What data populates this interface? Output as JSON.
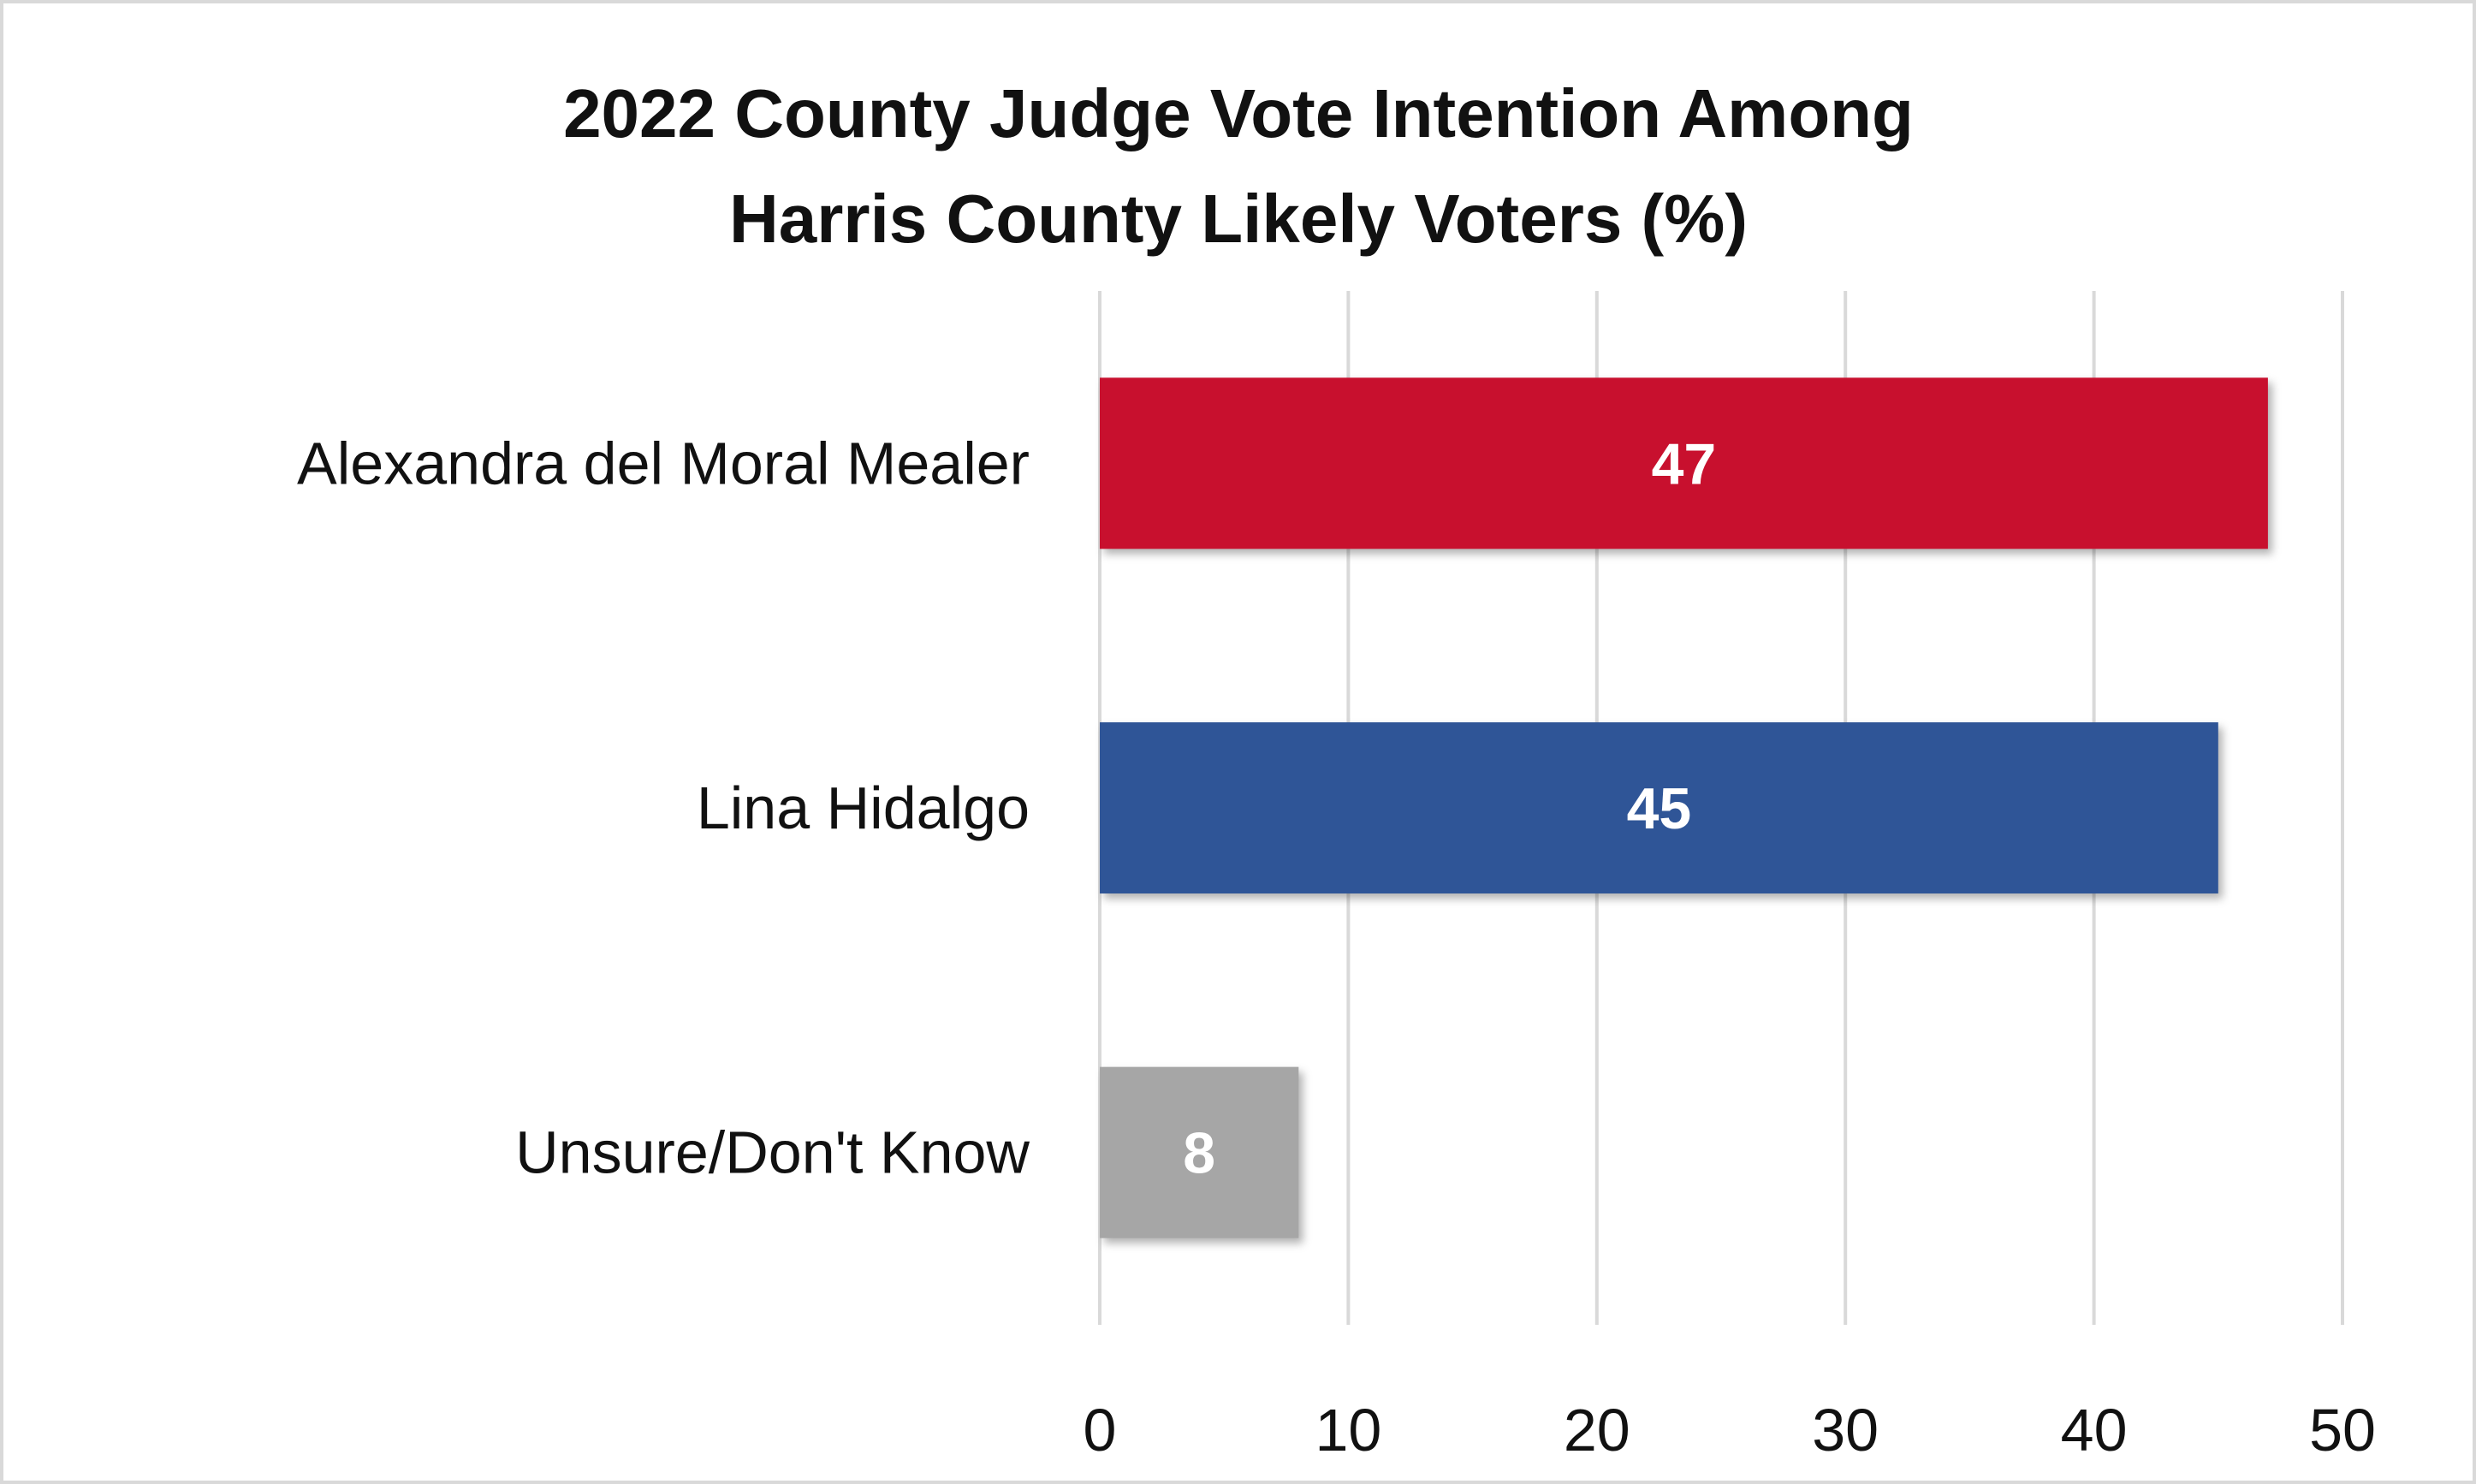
{
  "chart_data": {
    "type": "bar",
    "orientation": "horizontal",
    "title_lines": [
      "2022 County Judge Vote Intention Among",
      "Harris County Likely Voters (%)"
    ],
    "categories": [
      "Alexandra del Moral Mealer",
      "Lina Hidalgo",
      "Unsure/Don't Know"
    ],
    "values": [
      47,
      45,
      8
    ],
    "data_labels": [
      "47",
      "45",
      "8"
    ],
    "bar_colors": [
      "#c8102e",
      "#2f5597",
      "#a6a6a6"
    ],
    "xlim": [
      0,
      50
    ],
    "x_ticks": [
      0,
      10,
      20,
      30,
      40,
      50
    ],
    "x_tick_labels": [
      "0",
      "10",
      "20",
      "30",
      "40",
      "50"
    ],
    "grid": "vertical",
    "legend": "none"
  }
}
